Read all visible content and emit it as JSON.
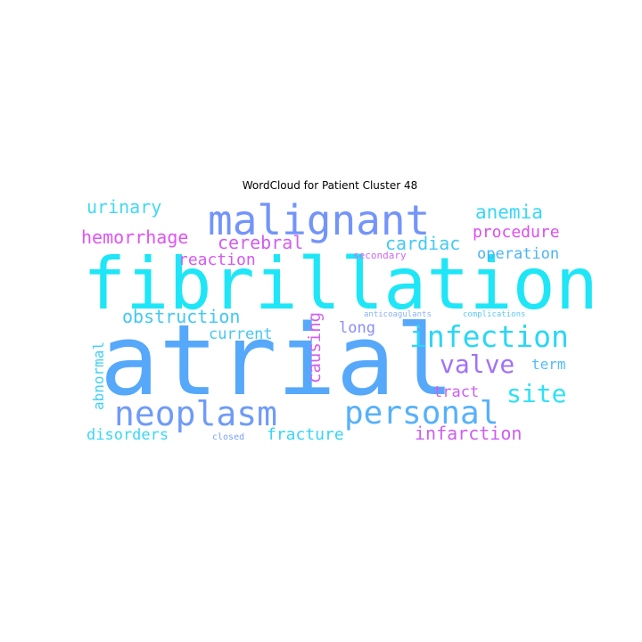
{
  "chart_data": {
    "type": "wordcloud",
    "title": "WordCloud for Patient Cluster 48",
    "words": [
      {
        "text": "fibrillation",
        "color": "#1ee6f6"
      },
      {
        "text": "atrial",
        "color": "#56a8fa"
      },
      {
        "text": "malignant",
        "color": "#7394fa"
      },
      {
        "text": "neoplasm",
        "color": "#6f9bf9"
      },
      {
        "text": "personal",
        "color": "#56b1fb"
      },
      {
        "text": "infection",
        "color": "#2ad7f6"
      },
      {
        "text": "valve",
        "color": "#a072f8"
      },
      {
        "text": "site",
        "color": "#2ce2f6"
      },
      {
        "text": "anemia",
        "color": "#38d7f6"
      },
      {
        "text": "urinary",
        "color": "#40d9f6"
      },
      {
        "text": "hemorrhage",
        "color": "#df54f2"
      },
      {
        "text": "cerebral",
        "color": "#d15df2"
      },
      {
        "text": "cardiac",
        "color": "#44c9f6"
      },
      {
        "text": "procedure",
        "color": "#dc4ef2"
      },
      {
        "text": "reaction",
        "color": "#d458f3"
      },
      {
        "text": "operation",
        "color": "#4cb3f8"
      },
      {
        "text": "obstruction",
        "color": "#40c8f5"
      },
      {
        "text": "current",
        "color": "#45c6f5"
      },
      {
        "text": "long",
        "color": "#8a8df7"
      },
      {
        "text": "causing",
        "color": "#d15ff2"
      },
      {
        "text": "abnormal",
        "color": "#40d0f6"
      },
      {
        "text": "term",
        "color": "#52bcf6"
      },
      {
        "text": "tract",
        "color": "#cc5ef2"
      },
      {
        "text": "infarction",
        "color": "#cd5ef2"
      },
      {
        "text": "fracture",
        "color": "#37d5f6"
      },
      {
        "text": "disorders",
        "color": "#3ad7f6"
      },
      {
        "text": "closed",
        "color": "#7aa0f8"
      },
      {
        "text": "secondary",
        "color": "#d268f2"
      },
      {
        "text": "anticoagulants",
        "color": "#8ab0f6"
      },
      {
        "text": "complications",
        "color": "#5ec9f5"
      }
    ]
  }
}
